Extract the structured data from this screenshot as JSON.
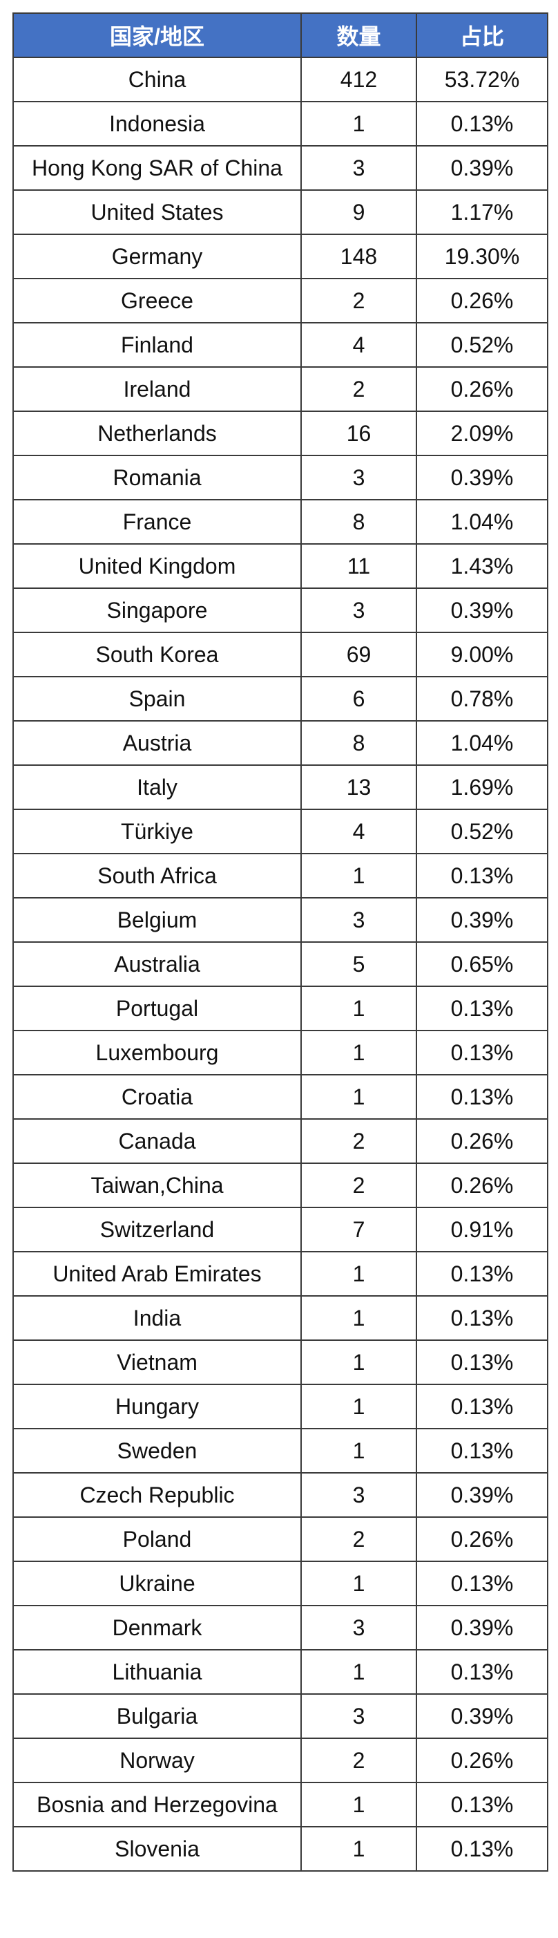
{
  "table": {
    "header": [
      "国家/地区",
      "数量",
      "占比"
    ],
    "rows": [
      [
        "China",
        "412",
        "53.72%"
      ],
      [
        "Indonesia",
        "1",
        "0.13%"
      ],
      [
        "Hong Kong SAR of China",
        "3",
        "0.39%"
      ],
      [
        "United States",
        "9",
        "1.17%"
      ],
      [
        "Germany",
        "148",
        "19.30%"
      ],
      [
        "Greece",
        "2",
        "0.26%"
      ],
      [
        "Finland",
        "4",
        "0.52%"
      ],
      [
        "Ireland",
        "2",
        "0.26%"
      ],
      [
        "Netherlands",
        "16",
        "2.09%"
      ],
      [
        "Romania",
        "3",
        "0.39%"
      ],
      [
        "France",
        "8",
        "1.04%"
      ],
      [
        "United Kingdom",
        "11",
        "1.43%"
      ],
      [
        "Singapore",
        "3",
        "0.39%"
      ],
      [
        "South Korea",
        "69",
        "9.00%"
      ],
      [
        "Spain",
        "6",
        "0.78%"
      ],
      [
        "Austria",
        "8",
        "1.04%"
      ],
      [
        "Italy",
        "13",
        "1.69%"
      ],
      [
        "Türkiye",
        "4",
        "0.52%"
      ],
      [
        "South Africa",
        "1",
        "0.13%"
      ],
      [
        "Belgium",
        "3",
        "0.39%"
      ],
      [
        "Australia",
        "5",
        "0.65%"
      ],
      [
        "Portugal",
        "1",
        "0.13%"
      ],
      [
        "Luxembourg",
        "1",
        "0.13%"
      ],
      [
        "Croatia",
        "1",
        "0.13%"
      ],
      [
        "Canada",
        "2",
        "0.26%"
      ],
      [
        "Taiwan,China",
        "2",
        "0.26%"
      ],
      [
        "Switzerland",
        "7",
        "0.91%"
      ],
      [
        "United Arab Emirates",
        "1",
        "0.13%"
      ],
      [
        "India",
        "1",
        "0.13%"
      ],
      [
        "Vietnam",
        "1",
        "0.13%"
      ],
      [
        "Hungary",
        "1",
        "0.13%"
      ],
      [
        "Sweden",
        "1",
        "0.13%"
      ],
      [
        "Czech Republic",
        "3",
        "0.39%"
      ],
      [
        "Poland",
        "2",
        "0.26%"
      ],
      [
        "Ukraine",
        "1",
        "0.13%"
      ],
      [
        "Denmark",
        "3",
        "0.39%"
      ],
      [
        "Lithuania",
        "1",
        "0.13%"
      ],
      [
        "Bulgaria",
        "3",
        "0.39%"
      ],
      [
        "Norway",
        "2",
        "0.26%"
      ],
      [
        "Bosnia and Herzegovina",
        "1",
        "0.13%"
      ],
      [
        "Slovenia",
        "1",
        "0.13%"
      ]
    ]
  }
}
